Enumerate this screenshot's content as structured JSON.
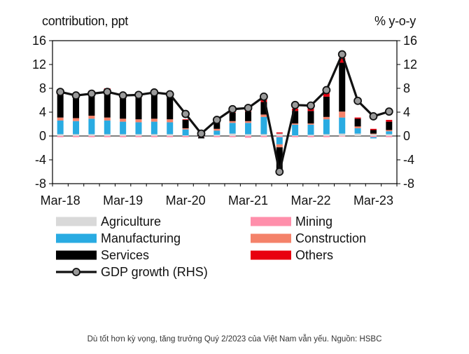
{
  "chart_data": {
    "type": "stacked-bar+line",
    "left_axis_title": "contribution,  ppt",
    "right_axis_title": "% y-o-y",
    "ylim": [
      -8,
      16
    ],
    "yticks": [
      "16",
      "12",
      "8",
      "4",
      "0",
      "-4",
      "-8"
    ],
    "x_tick_labels": [
      "Mar-18",
      "Mar-19",
      "Mar-20",
      "Mar-21",
      "Mar-22",
      "Mar-23"
    ],
    "categories": [
      "Q1-18",
      "Q2-18",
      "Q3-18",
      "Q4-18",
      "Q1-19",
      "Q2-19",
      "Q3-19",
      "Q4-19",
      "Q1-20",
      "Q2-20",
      "Q3-20",
      "Q4-20",
      "Q1-21",
      "Q2-21",
      "Q3-21",
      "Q4-21",
      "Q1-22",
      "Q2-22",
      "Q3-22",
      "Q4-22",
      "Q1-23",
      "Q2-23"
    ],
    "series": [
      {
        "name": "Agriculture",
        "color": "#d9d9d9",
        "values": [
          0.3,
          0.3,
          0.3,
          0.3,
          0.3,
          0.3,
          0.3,
          0.3,
          0.1,
          0.1,
          0.2,
          0.4,
          0.3,
          0.3,
          0.4,
          0.1,
          0.2,
          0.3,
          0.4,
          0.4,
          0.3,
          0.3
        ]
      },
      {
        "name": "Mining",
        "color": "#ff8fab",
        "values": [
          -0.2,
          -0.2,
          -0.2,
          -0.2,
          -0.2,
          -0.2,
          -0.2,
          -0.2,
          -0.2,
          -0.2,
          -0.2,
          -0.2,
          -0.3,
          -0.2,
          -0.2,
          -0.2,
          -0.2,
          -0.2,
          -0.1,
          0,
          -0.2,
          -0.2
        ]
      },
      {
        "name": "Manufacturing",
        "color": "#29abe2",
        "values": [
          2.3,
          2.2,
          2.6,
          2.3,
          2.1,
          2.0,
          2.1,
          2.0,
          1.0,
          0.3,
          0.7,
          1.8,
          1.9,
          2.9,
          -1.2,
          1.8,
          1.7,
          2.5,
          2.7,
          0.9,
          -0.2,
          0.5
        ]
      },
      {
        "name": "Construction",
        "color": "#f4826a",
        "values": [
          0.5,
          0.5,
          0.5,
          0.5,
          0.5,
          0.5,
          0.5,
          0.5,
          0.2,
          0.2,
          0.3,
          0.3,
          0.3,
          0.4,
          -0.5,
          0.2,
          0.2,
          0.4,
          1.0,
          0.3,
          0.1,
          0.2
        ]
      },
      {
        "name": "Services",
        "color": "#000000",
        "values": [
          3.8,
          3.5,
          3.8,
          4.5,
          3.4,
          3.6,
          4.0,
          4.0,
          1.4,
          -0.2,
          1.1,
          1.4,
          1.6,
          2.1,
          -4.2,
          2.1,
          2.1,
          3.4,
          8.2,
          1.3,
          0.6,
          1.4
        ]
      },
      {
        "name": "Others",
        "color": "#e8000f",
        "values": [
          0.4,
          0.4,
          0.4,
          0.4,
          0.4,
          0.4,
          0.4,
          0.4,
          0.1,
          0.1,
          0.1,
          0.1,
          0.2,
          0.4,
          0.2,
          0.4,
          0.4,
          0.6,
          0.8,
          0.2,
          0.2,
          0.3
        ]
      }
    ],
    "line": {
      "name": "GDP growth (RHS)",
      "color": "#111111",
      "values": [
        7.4,
        6.8,
        7.1,
        7.4,
        6.8,
        6.9,
        7.3,
        7.0,
        3.7,
        0.4,
        2.7,
        4.5,
        4.7,
        6.6,
        -6.0,
        5.2,
        5.1,
        7.7,
        13.7,
        5.9,
        3.3,
        4.1
      ]
    },
    "legend": [
      {
        "key": "Agriculture",
        "label": "Agriculture"
      },
      {
        "key": "Mining",
        "label": "Mining"
      },
      {
        "key": "Manufacturing",
        "label": "Manufacturing"
      },
      {
        "key": "Construction",
        "label": "Construction"
      },
      {
        "key": "Services",
        "label": "Services"
      },
      {
        "key": "Others",
        "label": "Others"
      },
      {
        "key": "line",
        "label": "GDP growth (RHS)"
      }
    ]
  },
  "caption": "Dù tốt hơn kỳ vọng, tăng trưởng Quý 2/2023 của Việt Nam vẫn yếu. Nguồn: HSBC"
}
